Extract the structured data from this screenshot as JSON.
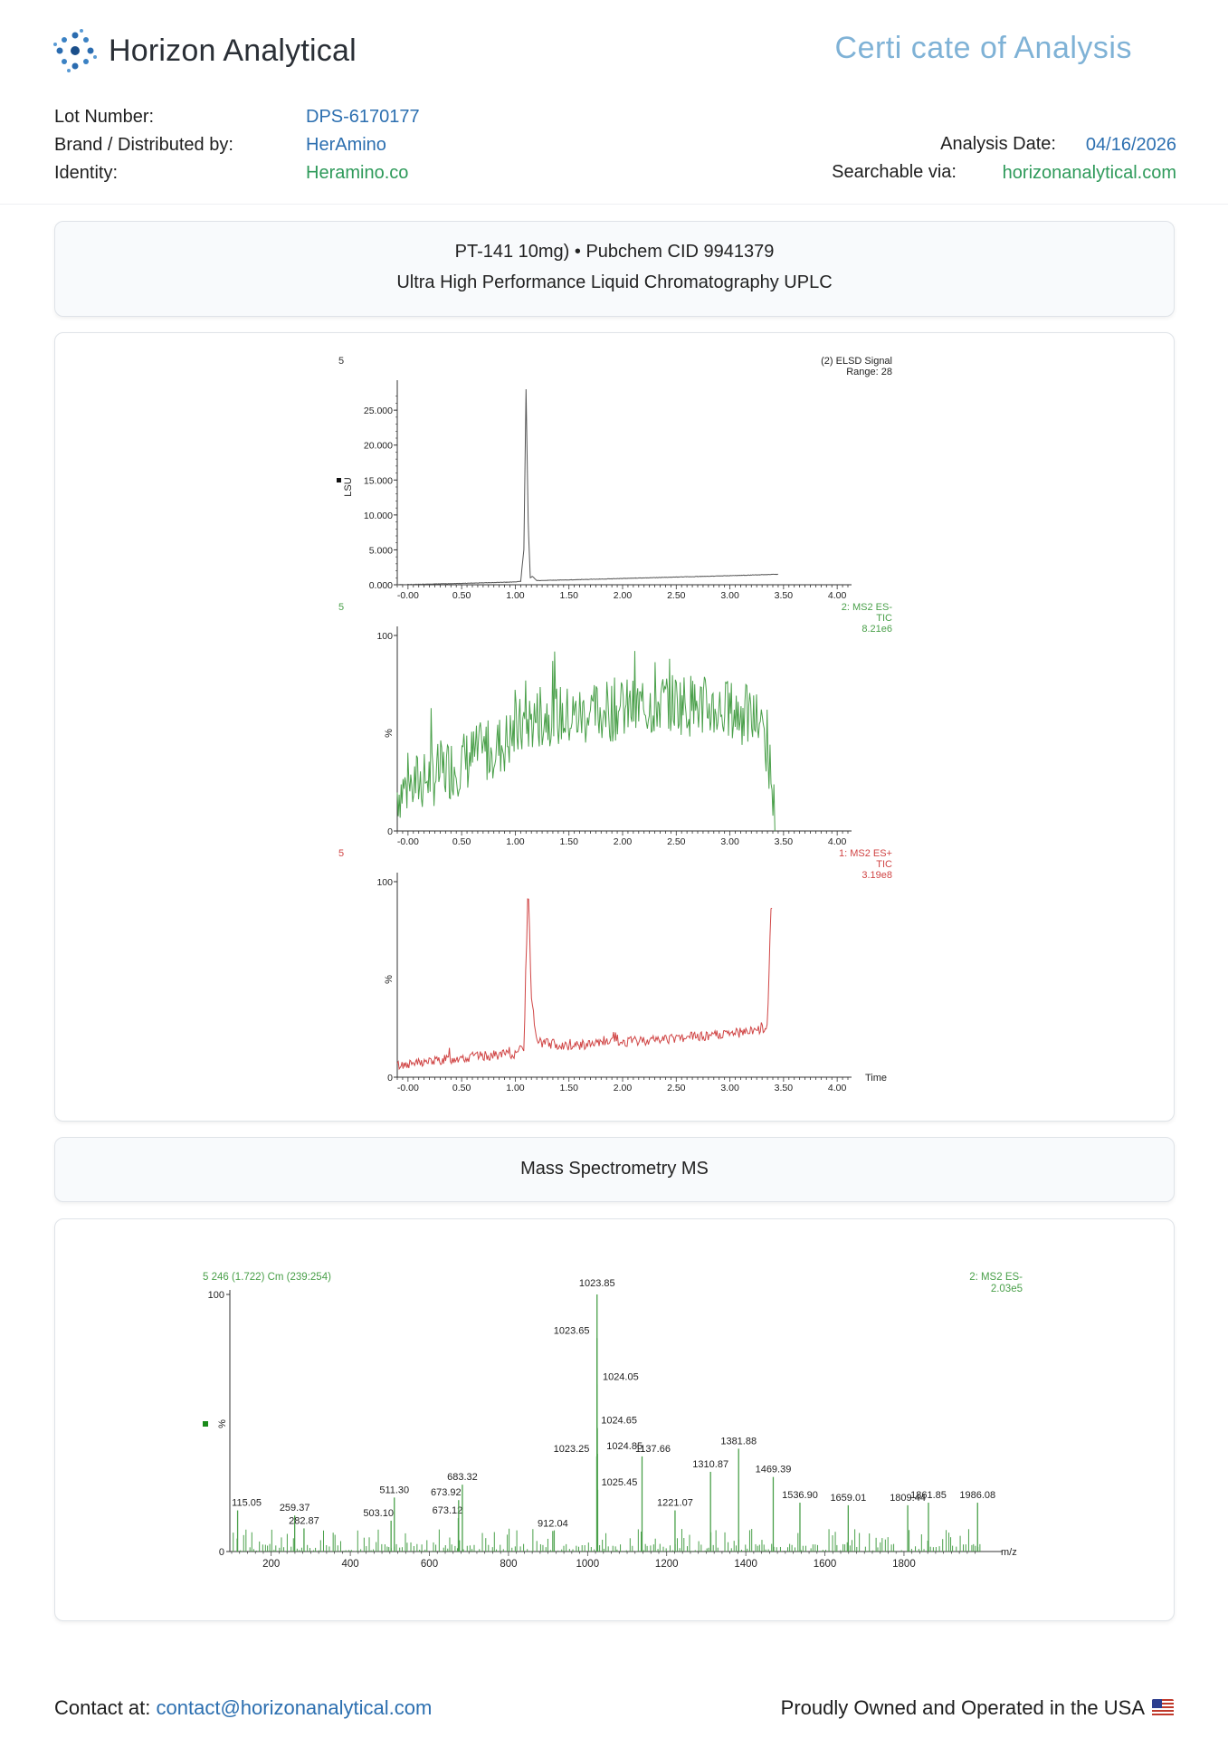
{
  "header": {
    "brand": "Horizon Analytical",
    "document_title": "Certi cate of Analysis",
    "lot_label": "Lot Number:",
    "lot_value": "DPS-6170177",
    "brand_label": "Brand / Distributed by:",
    "brand_value": "HerAmino",
    "identity_label": "Identity:",
    "identity_value": "Heramino.co",
    "analysis_date_label": "Analysis Date:",
    "analysis_date_value": "04/16/2026",
    "searchable_label": "Searchable via:",
    "searchable_value": "horizonanalytical.com"
  },
  "uplc_section": {
    "line1": "PT-141  10mg) • Pubchem CID  9941379",
    "line2": "Ultra High Performance Liquid Chromatography  UPLC"
  },
  "ms_section": {
    "title": "Mass Spectrometry  MS"
  },
  "footer": {
    "contact_label": "Contact at:",
    "contact_email": "contact@horizonanalytical.com",
    "tagline": "Proudly Owned and Operated in the USA"
  },
  "colors": {
    "blue": "#2c6fb0",
    "green": "#2e9a5a",
    "chart_gray": "#555555",
    "chart_green": "#4aa04a",
    "chart_red": "#d04545",
    "title_light_blue": "#7fb2d6"
  },
  "chart_data": [
    {
      "type": "line",
      "panel_number": "5",
      "legend": [
        "(2) ELSD Signal",
        "Range: 28"
      ],
      "ylabel": "LSU",
      "yticks": [
        "0.000",
        "5.000",
        "10.000",
        "15.000",
        "20.000",
        "25.000"
      ],
      "xticks": [
        "-0.00",
        "0.50",
        "1.00",
        "1.50",
        "2.00",
        "2.50",
        "3.00",
        "3.50",
        "4.00"
      ],
      "xlim": [
        -0.1,
        4.1
      ],
      "ylim": [
        0,
        28000
      ],
      "series": [
        {
          "x": [
            -0.1,
            0.5,
            1.0,
            1.05,
            1.08,
            1.1,
            1.12,
            1.14,
            1.16,
            1.2,
            1.5,
            2.0,
            2.5,
            3.0,
            3.45
          ],
          "y": [
            0,
            200,
            400,
            500,
            5000,
            28000,
            9000,
            1000,
            1200,
            600,
            700,
            900,
            1100,
            1300,
            1500
          ]
        }
      ]
    },
    {
      "type": "line",
      "panel_number": "5",
      "legend": [
        "2: MS2 ES-",
        "TIC",
        "8.21e6"
      ],
      "ylabel": "%",
      "yticks": [
        "0",
        "100"
      ],
      "xticks": [
        "-0.00",
        "0.50",
        "1.00",
        "1.50",
        "2.00",
        "2.50",
        "3.00",
        "3.50",
        "4.00"
      ],
      "xlim": [
        -0.1,
        4.1
      ],
      "ylim": [
        0,
        100
      ],
      "series": [
        {
          "x": [
            -0.1,
            0.1,
            0.3,
            0.5,
            0.7,
            0.9,
            1.1,
            1.3,
            1.5,
            1.7,
            1.9,
            2.1,
            2.3,
            2.5,
            2.7,
            2.9,
            3.1,
            3.3,
            3.38,
            3.42
          ],
          "y": [
            20,
            25,
            30,
            35,
            40,
            45,
            55,
            60,
            58,
            60,
            62,
            62,
            65,
            66,
            64,
            62,
            60,
            55,
            30,
            5
          ]
        }
      ]
    },
    {
      "type": "line",
      "panel_number": "5",
      "legend": [
        "1: MS2 ES+",
        "TIC",
        "3.19e8"
      ],
      "ylabel": "%",
      "xlabel": "Time",
      "yticks": [
        "0",
        "100"
      ],
      "xticks": [
        "-0.00",
        "0.50",
        "1.00",
        "1.50",
        "2.00",
        "2.50",
        "3.00",
        "3.50",
        "4.00"
      ],
      "xlim": [
        -0.1,
        4.1
      ],
      "ylim": [
        0,
        100
      ],
      "series": [
        {
          "x": [
            -0.1,
            0.5,
            1.0,
            1.08,
            1.12,
            1.15,
            1.2,
            1.5,
            2.0,
            2.5,
            3.0,
            3.35,
            3.38,
            3.4
          ],
          "y": [
            6,
            10,
            12,
            15,
            100,
            40,
            18,
            16,
            18,
            20,
            22,
            25,
            85,
            88
          ]
        }
      ]
    },
    {
      "type": "bar",
      "header_label": "5 246 (1.722) Cm (239:254)",
      "legend": [
        "2: MS2 ES-",
        "2.03e5"
      ],
      "ylabel": "%",
      "xlabel": "m/z",
      "yticks": [
        "0",
        "100"
      ],
      "xticks": [
        "200",
        "400",
        "600",
        "800",
        "1000",
        "1200",
        "1400",
        "1600",
        "1800"
      ],
      "xlim": [
        100,
        2000
      ],
      "ylim": [
        0,
        100
      ],
      "peaks": [
        {
          "mz": 115.05,
          "label": "115.05",
          "intensity": 16
        },
        {
          "mz": 259.37,
          "label": "259.37",
          "intensity": 14
        },
        {
          "mz": 282.87,
          "label": "282.87",
          "intensity": 9
        },
        {
          "mz": 503.1,
          "label": "503.10",
          "intensity": 12
        },
        {
          "mz": 511.3,
          "label": "511.30",
          "intensity": 21
        },
        {
          "mz": 673.12,
          "label": "673.12",
          "intensity": 13
        },
        {
          "mz": 673.92,
          "label": "673.92",
          "intensity": 20
        },
        {
          "mz": 683.32,
          "label": "683.32",
          "intensity": 26
        },
        {
          "mz": 912.04,
          "label": "912.04",
          "intensity": 8
        },
        {
          "mz": 1023.25,
          "label": "1023.25",
          "intensity": 37
        },
        {
          "mz": 1023.65,
          "label": "1023.65",
          "intensity": 83
        },
        {
          "mz": 1023.85,
          "label": "1023.85",
          "intensity": 100
        },
        {
          "mz": 1024.05,
          "label": "1024.05",
          "intensity": 65
        },
        {
          "mz": 1024.65,
          "label": "1024.65",
          "intensity": 48
        },
        {
          "mz": 1024.85,
          "label": "1024.85",
          "intensity": 38
        },
        {
          "mz": 1025.45,
          "label": "1025.45",
          "intensity": 24
        },
        {
          "mz": 1137.66,
          "label": "1137.66",
          "intensity": 37
        },
        {
          "mz": 1221.07,
          "label": "1221.07",
          "intensity": 16
        },
        {
          "mz": 1310.87,
          "label": "1310.87",
          "intensity": 31
        },
        {
          "mz": 1381.88,
          "label": "1381.88",
          "intensity": 40
        },
        {
          "mz": 1469.39,
          "label": "1469.39",
          "intensity": 29
        },
        {
          "mz": 1536.9,
          "label": "1536.90",
          "intensity": 19
        },
        {
          "mz": 1659.01,
          "label": "1659.01",
          "intensity": 18
        },
        {
          "mz": 1809.44,
          "label": "1809.44",
          "intensity": 18
        },
        {
          "mz": 1861.85,
          "label": "1861.85",
          "intensity": 19
        },
        {
          "mz": 1986.08,
          "label": "1986.08",
          "intensity": 19
        }
      ]
    }
  ]
}
